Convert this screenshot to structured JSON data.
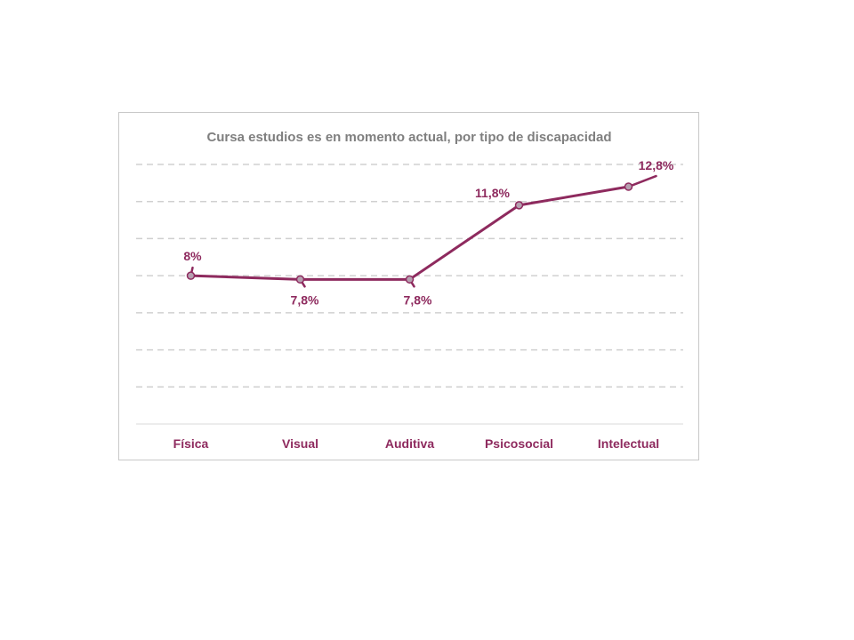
{
  "chart_data": {
    "type": "line",
    "title": "Cursa estudios es en momento actual, por tipo de discapacidad",
    "categories": [
      "Física",
      "Visual",
      "Auditiva",
      "Psicosocial",
      "Intelectual"
    ],
    "series": [
      {
        "values": [
          8.0,
          7.8,
          7.8,
          11.8,
          12.8
        ],
        "labels": [
          "8%",
          "7,8%",
          "7,8%",
          "11,8%",
          "12,8%"
        ]
      }
    ],
    "ylim": [
      0,
      14
    ],
    "grid": true,
    "legend": "none",
    "colors": {
      "series": "#8e2a5e",
      "marker_fill": "#b6a0b0",
      "title": "#7f7f7f",
      "grid": "#d0d0d0"
    }
  }
}
